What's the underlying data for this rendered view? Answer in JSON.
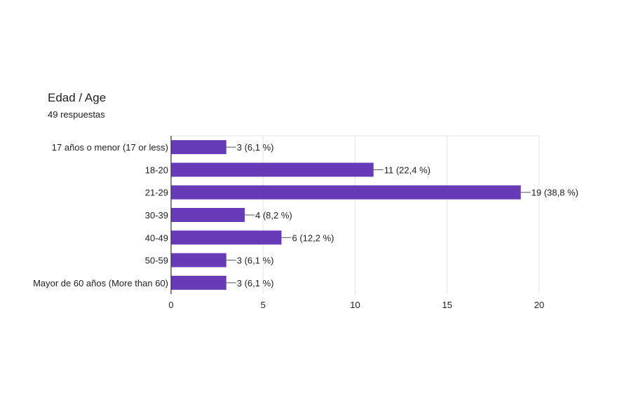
{
  "chart_data": {
    "type": "bar",
    "orientation": "horizontal",
    "title": "Edad / Age",
    "subtitle": "49 respuestas",
    "categories": [
      "17 años o menor (17 or less)",
      "18-20",
      "21-29",
      "30-39",
      "40-49",
      "50-59",
      "Mayor de 60 años (More than 60)"
    ],
    "values": [
      3,
      11,
      19,
      4,
      6,
      3,
      3
    ],
    "data_labels": [
      "3 (6,1 %)",
      "11 (22,4 %)",
      "19 (38,8 %)",
      "4 (8,2 %)",
      "6 (12,2 %)",
      "3 (6,1 %)",
      "3 (6,1 %)"
    ],
    "xlim": [
      0,
      20
    ],
    "x_ticks": [
      0,
      5,
      10,
      15,
      20
    ],
    "grid": true,
    "bar_color": "#673ab7",
    "grid_color": "#e6e6e6",
    "axis_color": "#333333"
  }
}
